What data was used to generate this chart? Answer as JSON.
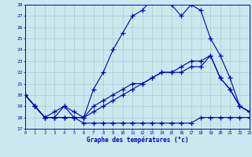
{
  "xlabel": "Graphe des températures (°c)",
  "bg_color": "#cce8ee",
  "grid_color": "#aacccc",
  "line_color": "#0000bb",
  "marker": "+",
  "x_ticks": [
    0,
    1,
    2,
    3,
    4,
    5,
    6,
    7,
    8,
    9,
    10,
    11,
    12,
    13,
    14,
    15,
    16,
    17,
    18,
    19,
    20,
    21,
    22,
    23
  ],
  "y_ticks": [
    17,
    18,
    19,
    20,
    21,
    22,
    23,
    24,
    25,
    26,
    27,
    28
  ],
  "xlim": [
    0,
    23
  ],
  "ylim": [
    17,
    28
  ],
  "series": [
    {
      "x": [
        0,
        1,
        2,
        3,
        4,
        5,
        6,
        7,
        8,
        9,
        10,
        11,
        12,
        13,
        14,
        15,
        16,
        17,
        18,
        19,
        20,
        21,
        22,
        23
      ],
      "y": [
        20,
        19,
        18,
        18,
        18,
        18,
        17.5,
        17.5,
        17.5,
        17.5,
        17.5,
        17.5,
        17.5,
        17.5,
        17.5,
        17.5,
        17.5,
        17.5,
        18,
        18,
        18,
        18,
        18,
        18
      ]
    },
    {
      "x": [
        0,
        1,
        2,
        3,
        4,
        5,
        6,
        7,
        8,
        9,
        10,
        11,
        12,
        13,
        14,
        15,
        16,
        17,
        18,
        19,
        20,
        21,
        22,
        23
      ],
      "y": [
        20,
        19,
        18,
        18,
        18,
        18,
        18,
        18.5,
        19,
        19.5,
        20,
        20.5,
        21,
        21.5,
        22,
        22,
        22.5,
        23,
        23,
        23.5,
        21.5,
        20.5,
        19,
        18.5
      ]
    },
    {
      "x": [
        0,
        1,
        2,
        3,
        4,
        5,
        6,
        7,
        8,
        9,
        10,
        11,
        12,
        13,
        14,
        15,
        16,
        17,
        18,
        19,
        20,
        21,
        22,
        23
      ],
      "y": [
        20,
        19,
        18,
        18.5,
        19,
        18.5,
        18,
        19,
        19.5,
        20,
        20.5,
        21,
        21,
        21.5,
        22,
        22,
        22,
        22.5,
        22.5,
        23.5,
        21.5,
        20.5,
        19,
        18.5
      ]
    },
    {
      "x": [
        0,
        1,
        2,
        3,
        4,
        5,
        6,
        7,
        8,
        9,
        10,
        11,
        12,
        13,
        14,
        15,
        16,
        17,
        18,
        19,
        20,
        21,
        22,
        23
      ],
      "y": [
        20,
        19,
        18,
        18,
        19,
        18,
        18,
        20.5,
        22,
        24,
        25.5,
        27,
        27.5,
        28.5,
        28.5,
        28,
        27,
        28,
        27.5,
        25,
        23.5,
        21.5,
        19,
        18.5
      ]
    }
  ]
}
